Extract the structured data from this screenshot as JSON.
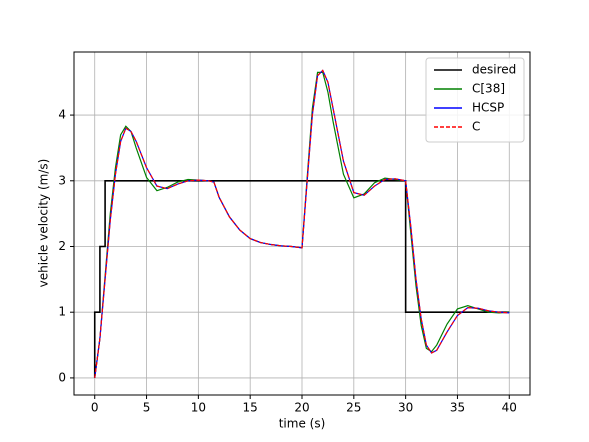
{
  "chart_data": {
    "type": "line",
    "xlabel": "time (s)",
    "ylabel": "vehicle velocity (m/s)",
    "xlim": [
      -2,
      42
    ],
    "ylim": [
      -0.26,
      4.96
    ],
    "xticks": [
      0,
      5,
      10,
      15,
      20,
      25,
      30,
      35,
      40
    ],
    "yticks": [
      0,
      1,
      2,
      3,
      4
    ],
    "grid": true,
    "legend": "upper right",
    "series": [
      {
        "name": "desired",
        "color": "#000000",
        "dash": "solid",
        "x": [
          0,
          0,
          0.5,
          0.5,
          1,
          1,
          30,
          30,
          40
        ],
        "values": [
          0,
          1,
          1,
          2,
          2,
          3,
          3,
          1,
          1
        ]
      },
      {
        "name": "C[38]",
        "color": "#008000",
        "dash": "solid",
        "x": [
          0,
          0.5,
          1,
          1.5,
          2,
          2.5,
          3,
          3.5,
          4,
          5,
          6,
          7,
          8,
          9,
          10,
          11,
          11.5,
          12,
          13,
          14,
          15,
          16,
          17,
          18,
          19,
          20,
          20.5,
          21,
          21.5,
          22,
          22.5,
          23,
          24,
          25,
          26,
          27,
          28,
          29,
          30,
          30.5,
          31,
          31.5,
          32,
          32.5,
          33,
          34,
          35,
          36,
          37,
          38,
          39,
          40
        ],
        "values": [
          0,
          0.6,
          1.55,
          2.5,
          3.2,
          3.7,
          3.83,
          3.75,
          3.5,
          3.05,
          2.85,
          2.9,
          2.98,
          3.02,
          3.01,
          3.0,
          2.98,
          2.75,
          2.45,
          2.25,
          2.12,
          2.06,
          2.03,
          2.01,
          2.0,
          1.98,
          3.05,
          4.1,
          4.65,
          4.65,
          4.35,
          3.9,
          3.1,
          2.74,
          2.8,
          2.97,
          3.04,
          3.02,
          3.0,
          2.2,
          1.4,
          0.8,
          0.45,
          0.4,
          0.5,
          0.82,
          1.05,
          1.1,
          1.05,
          1.0,
          0.99,
          1.0
        ]
      },
      {
        "name": "HCSP",
        "color": "#0000ff",
        "dash": "solid",
        "x": [
          0,
          0.5,
          1,
          1.5,
          2,
          2.5,
          3,
          3.5,
          4,
          5,
          6,
          7,
          8,
          9,
          10,
          11,
          11.5,
          12,
          13,
          14,
          15,
          16,
          17,
          18,
          19,
          20,
          20.5,
          21,
          21.5,
          22,
          22.5,
          23,
          24,
          25,
          26,
          27,
          28,
          29,
          30,
          30.5,
          31,
          31.5,
          32,
          32.5,
          33,
          34,
          35,
          36,
          37,
          38,
          39,
          40
        ],
        "values": [
          0,
          0.6,
          1.5,
          2.4,
          3.1,
          3.6,
          3.8,
          3.75,
          3.6,
          3.2,
          2.92,
          2.88,
          2.95,
          3.0,
          3.01,
          3.0,
          2.98,
          2.75,
          2.45,
          2.25,
          2.12,
          2.06,
          2.03,
          2.01,
          2.0,
          1.98,
          3.0,
          4.0,
          4.6,
          4.68,
          4.5,
          4.1,
          3.3,
          2.82,
          2.78,
          2.92,
          3.02,
          3.03,
          3.0,
          2.3,
          1.5,
          0.9,
          0.5,
          0.38,
          0.42,
          0.7,
          0.95,
          1.07,
          1.06,
          1.02,
          1.0,
          0.99
        ]
      },
      {
        "name": "C",
        "color": "#ff0000",
        "dash": "dashed",
        "x": [
          0,
          0.5,
          1,
          1.5,
          2,
          2.5,
          3,
          3.5,
          4,
          5,
          6,
          7,
          8,
          9,
          10,
          11,
          11.5,
          12,
          13,
          14,
          15,
          16,
          17,
          18,
          19,
          20,
          20.5,
          21,
          21.5,
          22,
          22.5,
          23,
          24,
          25,
          26,
          27,
          28,
          29,
          30,
          30.5,
          31,
          31.5,
          32,
          32.5,
          33,
          34,
          35,
          36,
          37,
          38,
          39,
          40
        ],
        "values": [
          0,
          0.6,
          1.5,
          2.4,
          3.1,
          3.6,
          3.8,
          3.75,
          3.6,
          3.2,
          2.92,
          2.88,
          2.95,
          3.0,
          3.01,
          3.0,
          2.98,
          2.75,
          2.45,
          2.25,
          2.12,
          2.06,
          2.03,
          2.01,
          2.0,
          1.98,
          3.0,
          4.0,
          4.6,
          4.68,
          4.5,
          4.1,
          3.3,
          2.82,
          2.78,
          2.92,
          3.02,
          3.03,
          3.0,
          2.3,
          1.5,
          0.9,
          0.5,
          0.38,
          0.42,
          0.7,
          0.95,
          1.07,
          1.06,
          1.02,
          1.0,
          0.99
        ]
      }
    ]
  }
}
